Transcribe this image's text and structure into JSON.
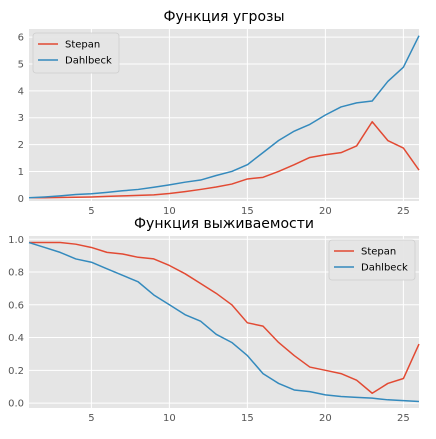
{
  "chart_data": [
    {
      "type": "line",
      "title": "Функция угрозы",
      "xlabel": "",
      "ylabel": "",
      "x": [
        1,
        2,
        3,
        4,
        5,
        6,
        7,
        8,
        9,
        10,
        11,
        12,
        13,
        14,
        15,
        16,
        17,
        18,
        19,
        20,
        21,
        22,
        23,
        24,
        25,
        26
      ],
      "xlim": [
        1,
        26
      ],
      "ylim": [
        -0.1,
        6.3
      ],
      "xticks": [
        5,
        10,
        15,
        20,
        25
      ],
      "yticks": [
        0,
        1,
        2,
        3,
        4,
        5,
        6
      ],
      "grid": true,
      "legend_position": "top-left",
      "series": [
        {
          "name": "Stepan",
          "color": "#e24a33",
          "values": [
            0.02,
            0.02,
            0.03,
            0.04,
            0.05,
            0.07,
            0.09,
            0.11,
            0.13,
            0.18,
            0.25,
            0.33,
            0.42,
            0.53,
            0.72,
            0.78,
            1.0,
            1.25,
            1.52,
            1.62,
            1.7,
            1.95,
            2.85,
            2.15,
            1.87,
            1.05
          ]
        },
        {
          "name": "Dahlbeck",
          "color": "#348abd",
          "values": [
            0.02,
            0.05,
            0.09,
            0.14,
            0.17,
            0.22,
            0.28,
            0.33,
            0.41,
            0.5,
            0.6,
            0.68,
            0.85,
            1.0,
            1.25,
            1.7,
            2.15,
            2.5,
            2.75,
            3.1,
            3.4,
            3.55,
            3.62,
            4.35,
            4.88,
            6.05
          ]
        }
      ]
    },
    {
      "type": "line",
      "title": "Функция выживаемости",
      "xlabel": "",
      "ylabel": "",
      "x": [
        1,
        2,
        3,
        4,
        5,
        6,
        7,
        8,
        9,
        10,
        11,
        12,
        13,
        14,
        15,
        16,
        17,
        18,
        19,
        20,
        21,
        22,
        23,
        24,
        25,
        26
      ],
      "xlim": [
        1,
        26
      ],
      "ylim": [
        -0.03,
        1.02
      ],
      "xticks": [
        5,
        10,
        15,
        20,
        25
      ],
      "yticks": [
        0.0,
        0.2,
        0.4,
        0.6,
        0.8,
        1.0
      ],
      "ytick_labels": [
        "0.0",
        "0.2",
        "0.4",
        "0.6",
        "0.8",
        "1.0"
      ],
      "grid": true,
      "legend_position": "top-right",
      "series": [
        {
          "name": "Stepan",
          "color": "#e24a33",
          "values": [
            0.98,
            0.98,
            0.98,
            0.97,
            0.95,
            0.92,
            0.91,
            0.89,
            0.88,
            0.84,
            0.79,
            0.73,
            0.67,
            0.6,
            0.49,
            0.47,
            0.37,
            0.29,
            0.22,
            0.2,
            0.18,
            0.14,
            0.06,
            0.12,
            0.15,
            0.36
          ]
        },
        {
          "name": "Dahlbeck",
          "color": "#348abd",
          "values": [
            0.98,
            0.95,
            0.92,
            0.88,
            0.86,
            0.82,
            0.78,
            0.74,
            0.66,
            0.6,
            0.54,
            0.5,
            0.42,
            0.37,
            0.29,
            0.18,
            0.12,
            0.08,
            0.07,
            0.05,
            0.04,
            0.035,
            0.03,
            0.02,
            0.015,
            0.01
          ]
        }
      ]
    }
  ]
}
